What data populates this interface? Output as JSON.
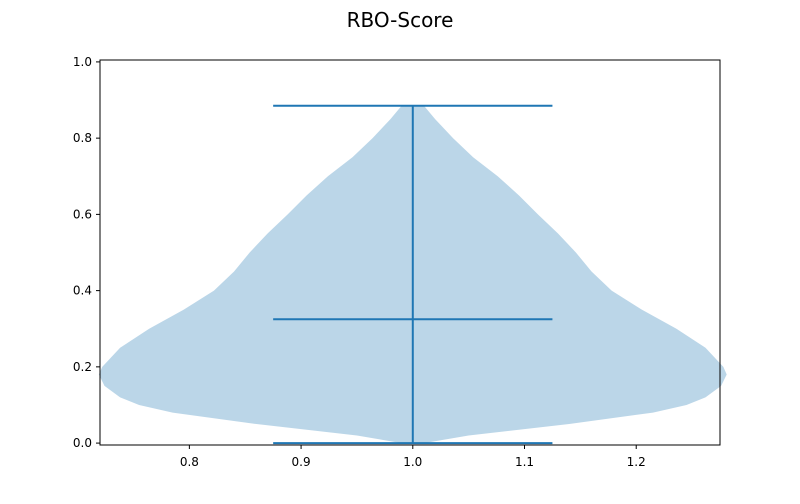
{
  "chart_data": {
    "type": "violin",
    "title": "RBO-Score",
    "xlabel": "",
    "ylabel": "",
    "xlim": [
      0.72,
      1.275
    ],
    "ylim": [
      -0.005,
      1.005
    ],
    "xticks": [
      0.8,
      0.9,
      1.0,
      1.1,
      1.2
    ],
    "xtick_labels": [
      "0.8",
      "0.9",
      "1.0",
      "1.1",
      "1.2"
    ],
    "yticks": [
      0.0,
      0.2,
      0.4,
      0.6,
      0.8,
      1.0
    ],
    "ytick_labels": [
      "0.0",
      "0.2",
      "0.4",
      "0.6",
      "0.8",
      "1.0"
    ],
    "grid": false,
    "violins": [
      {
        "position": 1.0,
        "min": 0.0,
        "max": 0.885,
        "mean": 0.325,
        "cap_half_width": 0.125,
        "density_half_width": [
          [
            0.0,
            0.01
          ],
          [
            0.02,
            0.05
          ],
          [
            0.05,
            0.14
          ],
          [
            0.08,
            0.215
          ],
          [
            0.1,
            0.245
          ],
          [
            0.12,
            0.262
          ],
          [
            0.15,
            0.276
          ],
          [
            0.18,
            0.281
          ],
          [
            0.2,
            0.278
          ],
          [
            0.25,
            0.262
          ],
          [
            0.3,
            0.236
          ],
          [
            0.35,
            0.205
          ],
          [
            0.4,
            0.178
          ],
          [
            0.45,
            0.16
          ],
          [
            0.5,
            0.146
          ],
          [
            0.55,
            0.13
          ],
          [
            0.6,
            0.112
          ],
          [
            0.65,
            0.095
          ],
          [
            0.7,
            0.076
          ],
          [
            0.75,
            0.054
          ],
          [
            0.8,
            0.036
          ],
          [
            0.85,
            0.02
          ],
          [
            0.885,
            0.01
          ]
        ]
      }
    ],
    "colors": {
      "body": "#1f77b4",
      "body_alpha": 0.3,
      "lines": "#1f77b4"
    }
  }
}
